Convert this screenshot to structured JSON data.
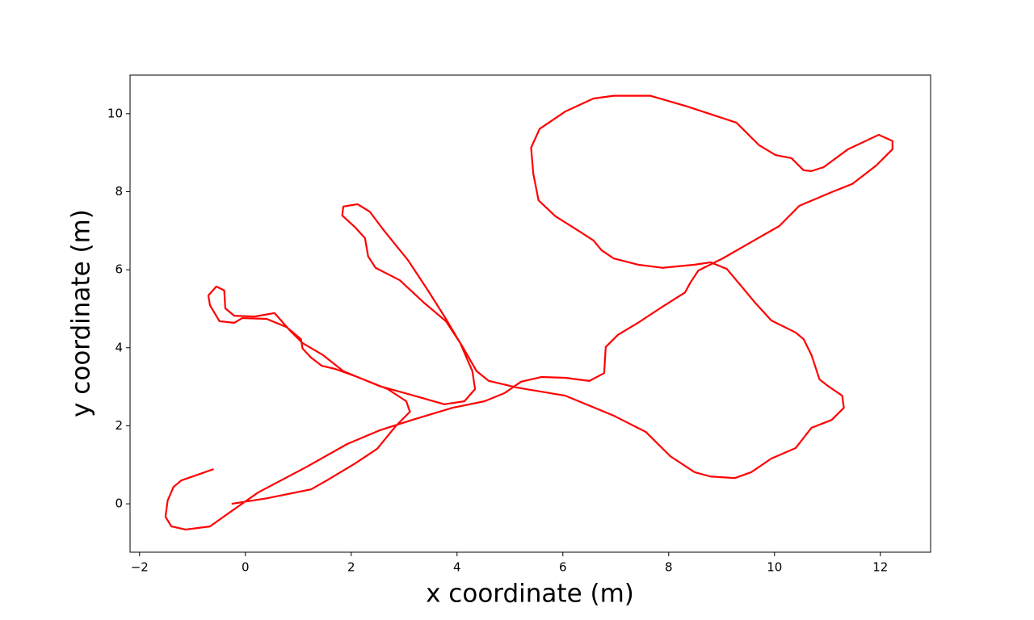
{
  "chart_data": {
    "type": "line",
    "x_label": "x coordinate (m)",
    "y_label": "y coordinate (m)",
    "color": "#ff0000",
    "xlim": [
      -2.18,
      12.95
    ],
    "ylim": [
      -1.24,
      10.99
    ],
    "xticks": [
      {
        "value": -2,
        "label": "−2"
      },
      0,
      2,
      4,
      6,
      8,
      10,
      12
    ],
    "yticks": [
      0,
      2,
      4,
      6,
      8,
      10
    ],
    "grid": false,
    "x": [
      -0.26,
      0.4,
      1.24,
      1.54,
      2.08,
      2.49,
      2.84,
      3.11,
      3.04,
      2.69,
      2.08,
      1.69,
      1.44,
      1.24,
      1.08,
      1.05,
      0.78,
      0.4,
      -0.06,
      -0.21,
      -0.49,
      -0.67,
      -0.7,
      -0.55,
      -0.4,
      -0.38,
      -0.21,
      0.17,
      0.55,
      0.85,
      1.08,
      1.47,
      1.85,
      2.53,
      3.3,
      3.76,
      4.14,
      4.34,
      4.29,
      4.06,
      3.79,
      3.45,
      3.07,
      2.61,
      2.35,
      2.12,
      1.85,
      1.83,
      2.08,
      2.26,
      2.32,
      2.46,
      2.92,
      3.37,
      3.79,
      4.09,
      4.37,
      4.6,
      5.13,
      6.05,
      6.96,
      7.57,
      8.03,
      8.49,
      8.79,
      9.25,
      9.56,
      9.94,
      10.4,
      10.7,
      11.08,
      11.31,
      11.28,
      11.01,
      10.85,
      10.7,
      10.55,
      10.4,
      9.94,
      9.63,
      9.1,
      8.79,
      8.49,
      7.88,
      7.42,
      6.96,
      6.73,
      6.58,
      6.27,
      5.86,
      5.54,
      5.44,
      5.4,
      5.56,
      6.05,
      6.58,
      6.96,
      7.65,
      8.34,
      9.28,
      9.71,
      10.02,
      10.32,
      10.55,
      10.7,
      10.93,
      11.39,
      11.97,
      12.23,
      12.23,
      11.92,
      11.47,
      11.08,
      10.47,
      10.09,
      9.56,
      9.02,
      8.56,
      8.41,
      8.31,
      7.88,
      7.42,
      7.04,
      6.81,
      6.78,
      6.5,
      6.05,
      5.59,
      5.21,
      4.9,
      4.52,
      3.91,
      3.15,
      2.53,
      1.92,
      1.16,
      0.24,
      -0.37,
      -0.67,
      -1.13,
      -1.4,
      -1.51,
      -1.47,
      -1.36,
      -1.21,
      -0.6
    ],
    "values": [
      0,
      0.14,
      0.37,
      0.6,
      1.04,
      1.41,
      1.99,
      2.36,
      2.63,
      2.94,
      3.27,
      3.46,
      3.54,
      3.75,
      3.98,
      4.22,
      4.53,
      4.74,
      4.76,
      4.64,
      4.68,
      5.09,
      5.34,
      5.57,
      5.47,
      5.01,
      4.82,
      4.8,
      4.89,
      4.43,
      4.12,
      3.81,
      3.4,
      3.02,
      2.73,
      2.55,
      2.63,
      2.94,
      3.4,
      4.12,
      4.74,
      5.47,
      6.25,
      7.02,
      7.49,
      7.68,
      7.62,
      7.39,
      7.08,
      6.81,
      6.34,
      6.05,
      5.73,
      5.16,
      4.68,
      4.06,
      3.4,
      3.15,
      2.98,
      2.77,
      2.26,
      1.84,
      1.22,
      0.81,
      0.7,
      0.66,
      0.81,
      1.16,
      1.43,
      1.95,
      2.15,
      2.46,
      2.77,
      3.02,
      3.19,
      3.81,
      4.22,
      4.39,
      4.7,
      5.16,
      6.02,
      6.19,
      6.13,
      6.05,
      6.13,
      6.29,
      6.5,
      6.75,
      7.02,
      7.37,
      7.78,
      8.47,
      9.13,
      9.61,
      10.06,
      10.39,
      10.46,
      10.46,
      10.19,
      9.77,
      9.19,
      8.94,
      8.86,
      8.55,
      8.53,
      8.63,
      9.09,
      9.46,
      9.3,
      9.09,
      8.67,
      8.2,
      7.99,
      7.64,
      7.12,
      6.71,
      6.29,
      5.98,
      5.67,
      5.42,
      5.05,
      4.64,
      4.33,
      4.02,
      3.35,
      3.15,
      3.23,
      3.25,
      3.13,
      2.84,
      2.63,
      2.46,
      2.15,
      1.88,
      1.53,
      0.95,
      0.29,
      -0.29,
      -0.58,
      -0.66,
      -0.58,
      -0.33,
      0.08,
      0.43,
      0.6,
      0.89
    ]
  }
}
